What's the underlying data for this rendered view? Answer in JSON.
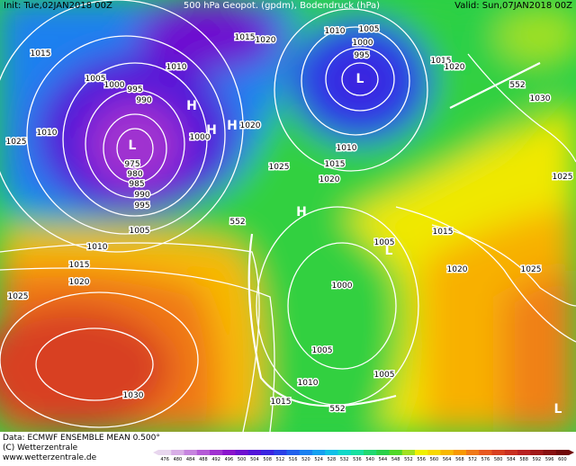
{
  "header": {
    "init": "Init: Tue,02JAN2018 00Z",
    "title": "500 hPa Geopot. (gpdm), Bodendruck (hPa)",
    "valid": "Valid: Sun,07JAN2018 00Z"
  },
  "footer": {
    "data": "Data: ECMWF ENSEMBLE MEAN 0.500°",
    "copyright": "(C) Wetterzentrale",
    "url": "www.wetterzentrale.de"
  },
  "map": {
    "pressure_labels": [
      "1015",
      "1010",
      "1025",
      "1005",
      "1000",
      "995",
      "990",
      "975",
      "980",
      "985",
      "990",
      "995",
      "1010",
      "1015",
      "1020",
      "1010",
      "1005",
      "1000",
      "995",
      "1015",
      "1020",
      "1030",
      "1010",
      "1015",
      "1020",
      "1025",
      "1020",
      "1005",
      "1010",
      "1015",
      "1020",
      "1025",
      "1030",
      "1005",
      "1015",
      "1020",
      "1025",
      "1025",
      "1000",
      "1005",
      "1005",
      "1010",
      "1015",
      "1000"
    ],
    "height_labels": [
      "552",
      "552",
      "552"
    ],
    "centers": [
      "L",
      "L",
      "H",
      "H",
      "H",
      "H",
      "L",
      "L"
    ]
  },
  "colorbar": {
    "values": [
      476,
      480,
      484,
      488,
      492,
      496,
      500,
      504,
      508,
      512,
      516,
      520,
      524,
      528,
      532,
      536,
      540,
      544,
      548,
      552,
      556,
      560,
      564,
      568,
      572,
      576,
      580,
      584,
      588,
      592,
      596,
      600
    ],
    "colors": [
      "#e8d6ee",
      "#d8aee6",
      "#c684de",
      "#b45ad6",
      "#a032d0",
      "#8a14cc",
      "#6e10d0",
      "#5214d8",
      "#3a24e0",
      "#2a40e6",
      "#2060ec",
      "#1a80f0",
      "#14a0f0",
      "#10c0e8",
      "#10d8c8",
      "#18e0a0",
      "#20d870",
      "#28d048",
      "#50d828",
      "#a0e020",
      "#f0f000",
      "#f8d800",
      "#f8b800",
      "#f89800",
      "#f07818",
      "#e85820",
      "#d84020",
      "#c83020",
      "#b82020",
      "#a01818",
      "#881010",
      "#700808"
    ]
  }
}
